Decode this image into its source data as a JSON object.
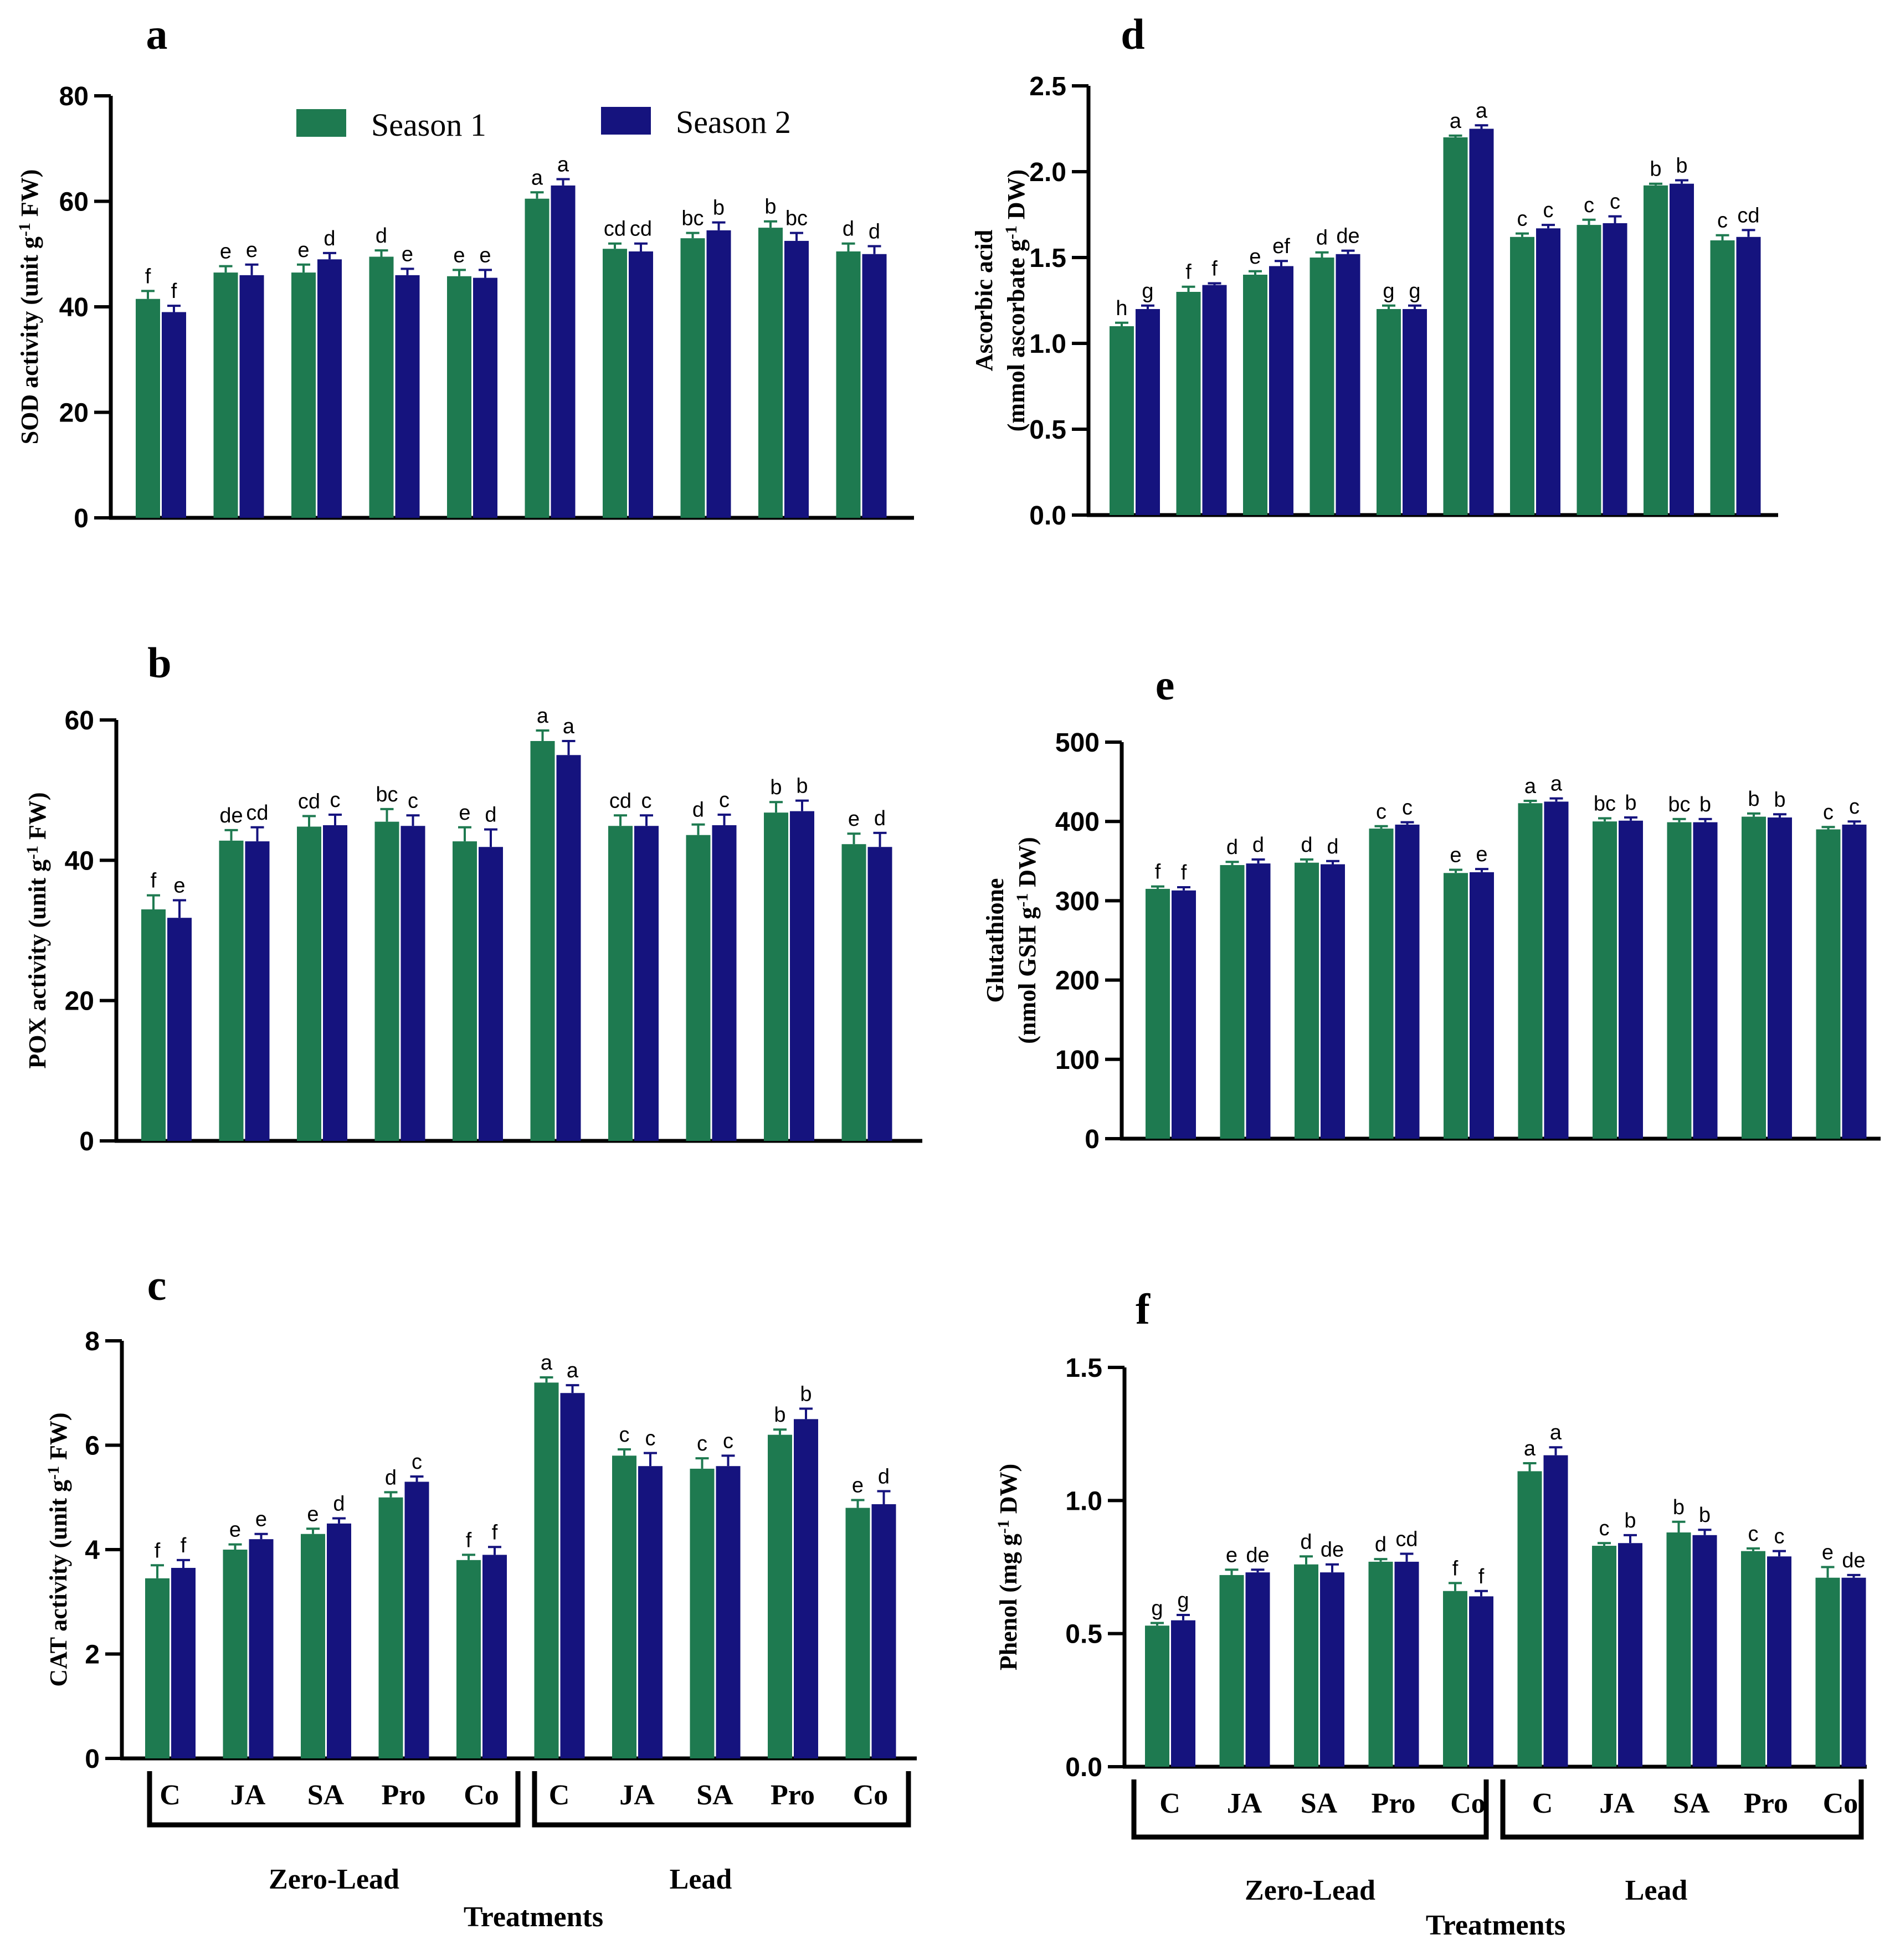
{
  "colors": {
    "season1": "#1e7a50",
    "season2": "#15137e",
    "axis": "#000000",
    "text": "#000000"
  },
  "legend": {
    "season1": "Season 1",
    "season2": "Season 2"
  },
  "categories": [
    "C",
    "JA",
    "SA",
    "Pro",
    "Co",
    "C",
    "JA",
    "SA",
    "Pro",
    "Co"
  ],
  "groups": [
    "Zero-Lead",
    "Lead"
  ],
  "x_title": "Treatments",
  "chart_data": [
    {
      "panel": "a",
      "type": "bar",
      "ylabel": [
        "SOD activity (unit g-1 FW)"
      ],
      "ylim": [
        0,
        80
      ],
      "yticks": [
        "0",
        "20",
        "40",
        "60",
        "80"
      ],
      "series": [
        {
          "name": "Season 1",
          "values": [
            41.5,
            46.5,
            46.5,
            49.5,
            45.8,
            60.5,
            51,
            53,
            55,
            50.5
          ],
          "errors": [
            1.5,
            1.2,
            1.5,
            1.2,
            1.2,
            1.2,
            1.0,
            1.0,
            1.2,
            1.5
          ],
          "letters": [
            "f",
            "e",
            "e",
            "d",
            "e",
            "a",
            "cd",
            "bc",
            "b",
            "d"
          ]
        },
        {
          "name": "Season 2",
          "values": [
            39,
            46,
            49,
            46,
            45.5,
            63,
            50.5,
            54.5,
            52.5,
            50
          ],
          "errors": [
            1.2,
            2.0,
            1.2,
            1.2,
            1.5,
            1.2,
            1.5,
            1.5,
            1.5,
            1.5
          ],
          "letters": [
            "f",
            "e",
            "d",
            "e",
            "e",
            "a",
            "cd",
            "b",
            "bc",
            "d"
          ]
        }
      ]
    },
    {
      "panel": "b",
      "type": "bar",
      "ylabel": [
        "POX activity (unit g-1 FW)"
      ],
      "ylim": [
        0,
        60
      ],
      "yticks": [
        "0",
        "20",
        "40",
        "60"
      ],
      "series": [
        {
          "name": "Season 1",
          "values": [
            33,
            42.8,
            44.8,
            45.5,
            42.7,
            57,
            44.9,
            43.6,
            46.8,
            42.3
          ],
          "errors": [
            2.0,
            1.5,
            1.5,
            1.8,
            2.0,
            1.5,
            1.5,
            1.5,
            1.5,
            1.5
          ],
          "letters": [
            "f",
            "de",
            "cd",
            "bc",
            "e",
            "a",
            "cd",
            "d",
            "b",
            "e"
          ]
        },
        {
          "name": "Season 2",
          "values": [
            31.8,
            42.7,
            45,
            44.9,
            41.9,
            55,
            44.9,
            45,
            47,
            41.9
          ],
          "errors": [
            2.5,
            2.0,
            1.5,
            1.5,
            2.5,
            2.0,
            1.5,
            1.5,
            1.5,
            2.0
          ],
          "letters": [
            "e",
            "cd",
            "c",
            "c",
            "d",
            "a",
            "c",
            "c",
            "b",
            "d"
          ]
        }
      ]
    },
    {
      "panel": "c",
      "type": "bar",
      "ylabel": [
        "CAT activity (unit g-1 FW)"
      ],
      "ylim": [
        0,
        8
      ],
      "yticks": [
        "0",
        "2",
        "4",
        "6",
        "8"
      ],
      "series": [
        {
          "name": "Season 1",
          "values": [
            3.45,
            4.0,
            4.3,
            5.0,
            3.8,
            7.2,
            5.8,
            5.55,
            6.2,
            4.8
          ],
          "errors": [
            0.25,
            0.1,
            0.1,
            0.1,
            0.1,
            0.1,
            0.12,
            0.2,
            0.1,
            0.15
          ],
          "letters": [
            "f",
            "e",
            "e",
            "d",
            "f",
            "a",
            "c",
            "c",
            "b",
            "e"
          ]
        },
        {
          "name": "Season 2",
          "values": [
            3.65,
            4.2,
            4.5,
            5.3,
            3.9,
            7.0,
            5.6,
            5.6,
            6.5,
            4.87
          ],
          "errors": [
            0.15,
            0.1,
            0.1,
            0.1,
            0.15,
            0.15,
            0.25,
            0.2,
            0.2,
            0.25
          ],
          "letters": [
            "f",
            "e",
            "d",
            "c",
            "f",
            "a",
            "c",
            "c",
            "b",
            "d"
          ]
        }
      ]
    },
    {
      "panel": "d",
      "type": "bar",
      "ylabel": [
        "Ascorbic acid",
        "(mmol ascorbate g-1 DW)"
      ],
      "ylim": [
        0,
        2.5
      ],
      "yticks": [
        "0.0",
        "0.5",
        "1.0",
        "1.5",
        "2.0",
        "2.5"
      ],
      "series": [
        {
          "name": "Season 1",
          "values": [
            1.1,
            1.3,
            1.4,
            1.5,
            1.2,
            2.2,
            1.62,
            1.69,
            1.92,
            1.6
          ],
          "errors": [
            0.02,
            0.03,
            0.02,
            0.03,
            0.02,
            0.01,
            0.02,
            0.03,
            0.01,
            0.03
          ],
          "letters": [
            "h",
            "f",
            "e",
            "d",
            "g",
            "a",
            "c",
            "c",
            "b",
            "c"
          ]
        },
        {
          "name": "Season 2",
          "values": [
            1.2,
            1.34,
            1.45,
            1.52,
            1.2,
            2.25,
            1.67,
            1.7,
            1.93,
            1.62
          ],
          "errors": [
            0.02,
            0.01,
            0.03,
            0.02,
            0.02,
            0.02,
            0.02,
            0.04,
            0.02,
            0.04
          ],
          "letters": [
            "g",
            "f",
            "ef",
            "de",
            "g",
            "a",
            "c",
            "c",
            "b",
            "cd"
          ]
        }
      ]
    },
    {
      "panel": "e",
      "type": "bar",
      "ylabel": [
        "Glutathione",
        "(nmol GSH g-1 DW)"
      ],
      "ylim": [
        0,
        500
      ],
      "yticks": [
        "0",
        "100",
        "200",
        "300",
        "400",
        "500"
      ],
      "series": [
        {
          "name": "Season 1",
          "values": [
            315,
            345,
            348,
            391,
            335,
            423,
            400,
            399,
            406,
            390
          ],
          "errors": [
            3,
            4,
            4,
            3,
            4,
            3,
            4,
            4,
            4,
            3
          ],
          "letters": [
            "f",
            "d",
            "d",
            "c",
            "e",
            "a",
            "bc",
            "bc",
            "b",
            "c"
          ]
        },
        {
          "name": "Season 2",
          "values": [
            313,
            347,
            346,
            396,
            336,
            425,
            401,
            399,
            405,
            396
          ],
          "errors": [
            4,
            5,
            4,
            3,
            4,
            4,
            4,
            4,
            4,
            4
          ],
          "letters": [
            "f",
            "d",
            "d",
            "c",
            "e",
            "a",
            "b",
            "b",
            "b",
            "c"
          ]
        }
      ]
    },
    {
      "panel": "f",
      "type": "bar",
      "ylabel": [
        "Phenol (mg g-1 DW)"
      ],
      "ylim": [
        0,
        1.5
      ],
      "yticks": [
        "0.0",
        "0.5",
        "1.0",
        "1.5"
      ],
      "series": [
        {
          "name": "Season 1",
          "values": [
            0.53,
            0.72,
            0.76,
            0.77,
            0.66,
            1.11,
            0.83,
            0.88,
            0.81,
            0.71
          ],
          "errors": [
            0.01,
            0.02,
            0.03,
            0.01,
            0.03,
            0.03,
            0.01,
            0.04,
            0.01,
            0.04
          ],
          "letters": [
            "g",
            "e",
            "d",
            "d",
            "f",
            "a",
            "c",
            "b",
            "c",
            "e"
          ]
        },
        {
          "name": "Season 2",
          "values": [
            0.55,
            0.73,
            0.73,
            0.77,
            0.64,
            1.17,
            0.84,
            0.87,
            0.79,
            0.71
          ],
          "errors": [
            0.02,
            0.01,
            0.03,
            0.03,
            0.02,
            0.03,
            0.03,
            0.02,
            0.02,
            0.01
          ],
          "letters": [
            "g",
            "de",
            "de",
            "cd",
            "f",
            "a",
            "b",
            "b",
            "c",
            "de"
          ]
        }
      ]
    }
  ]
}
